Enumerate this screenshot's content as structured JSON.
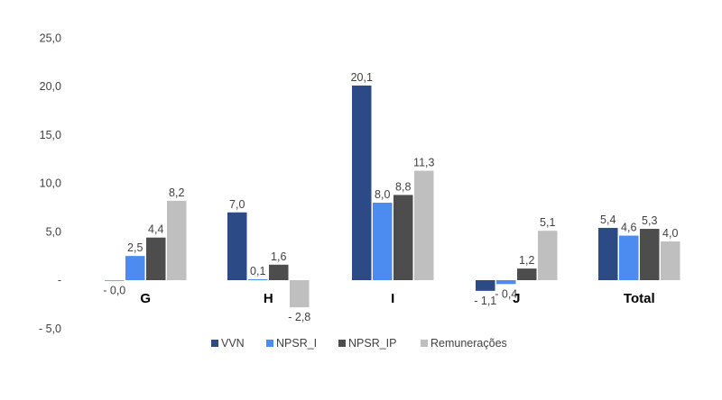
{
  "chart_data": {
    "type": "bar",
    "categories": [
      "G",
      "H",
      "I",
      "J",
      "Total"
    ],
    "series": [
      {
        "name": "VVN",
        "values": [
          -0.04,
          7.0,
          20.1,
          -1.1,
          5.4
        ],
        "labels": [
          "- 0,0",
          "7,0",
          "20,1",
          "- 1,1",
          "5,4"
        ],
        "color": "#2B4A86"
      },
      {
        "name": "NPSR_I",
        "values": [
          2.5,
          0.1,
          8.0,
          -0.4,
          4.6
        ],
        "labels": [
          "2,5",
          "0,1",
          "8,0",
          "- 0,4",
          "4,6"
        ],
        "color": "#4C8CF0"
      },
      {
        "name": "NPSR_IP",
        "values": [
          4.4,
          1.6,
          8.8,
          1.2,
          5.3
        ],
        "labels": [
          "4,4",
          "1,6",
          "8,8",
          "1,2",
          "5,3"
        ],
        "color": "#4D4D4D"
      },
      {
        "name": "Remunerações",
        "values": [
          8.2,
          -2.8,
          11.3,
          5.1,
          4.0
        ],
        "labels": [
          "8,2",
          "- 2,8",
          "11,3",
          "5,1",
          "4,0"
        ],
        "color": "#BFBFBF"
      }
    ],
    "y_ticks": [
      {
        "value": 25,
        "label": "25,0"
      },
      {
        "value": 20,
        "label": "20,0"
      },
      {
        "value": 15,
        "label": "15,0"
      },
      {
        "value": 10,
        "label": "10,0"
      },
      {
        "value": 5,
        "label": "5,0"
      },
      {
        "value": 0,
        "label": "-"
      },
      {
        "value": -5,
        "label": "- 5,0"
      }
    ],
    "ylim": [
      -5,
      25
    ],
    "grid": false,
    "legend_position": "bottom"
  }
}
